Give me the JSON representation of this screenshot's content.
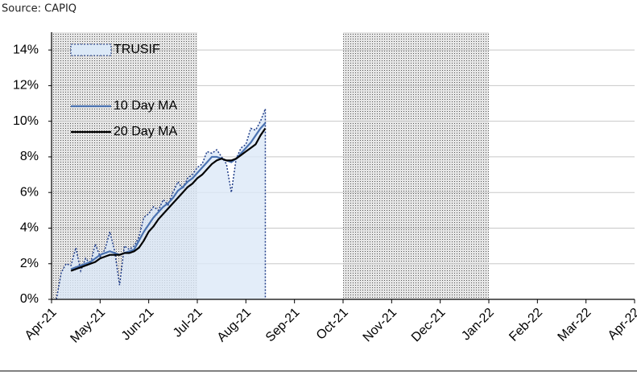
{
  "chart_data": {
    "type": "line",
    "source": "Source: CAPIQ",
    "x": [
      0.1,
      0.2,
      0.3,
      0.4,
      0.5,
      0.6,
      0.7,
      0.8,
      0.9,
      1.0,
      1.1,
      1.2,
      1.3,
      1.4,
      1.5,
      1.6,
      1.7,
      1.8,
      1.9,
      2.0,
      2.1,
      2.2,
      2.3,
      2.4,
      2.5,
      2.6,
      2.7,
      2.8,
      2.9,
      3.0,
      3.1,
      3.2,
      3.3,
      3.4,
      3.5,
      3.6,
      3.7,
      3.8,
      3.9,
      4.0,
      4.1,
      4.2,
      4.3,
      4.4
    ],
    "series": [
      {
        "name": "TRUSIF",
        "kind": "area",
        "color": "#dce9f7",
        "line_color": "#1f3c88",
        "values": [
          0,
          1.5,
          2.0,
          1.9,
          2.9,
          1.6,
          2.3,
          2.0,
          3.1,
          2.4,
          2.8,
          3.8,
          2.7,
          0.8,
          3.0,
          2.8,
          3.0,
          3.5,
          4.6,
          4.8,
          5.2,
          5.0,
          5.6,
          5.3,
          6.0,
          6.6,
          6.2,
          6.8,
          7.0,
          7.4,
          7.6,
          8.3,
          8.2,
          8.4,
          8.0,
          7.6,
          6.0,
          7.9,
          8.5,
          8.7,
          9.6,
          9.5,
          10.0,
          10.7
        ]
      },
      {
        "name": "10 Day MA",
        "kind": "line",
        "color": "#4a72b0",
        "values": [
          null,
          null,
          null,
          1.7,
          1.8,
          1.9,
          2.0,
          2.1,
          2.3,
          2.5,
          2.6,
          2.7,
          2.6,
          2.5,
          2.6,
          2.7,
          2.8,
          3.3,
          3.8,
          4.2,
          4.6,
          4.9,
          5.2,
          5.4,
          5.7,
          6.1,
          6.3,
          6.6,
          6.8,
          7.1,
          7.4,
          7.7,
          8.0,
          8.0,
          7.9,
          7.8,
          7.7,
          7.9,
          8.2,
          8.5,
          8.8,
          9.2,
          9.6,
          9.9
        ]
      },
      {
        "name": "20 Day MA",
        "kind": "line",
        "color": "#000000",
        "values": [
          null,
          null,
          null,
          1.6,
          1.7,
          1.8,
          1.9,
          2.0,
          2.1,
          2.3,
          2.4,
          2.5,
          2.5,
          2.5,
          2.6,
          2.6,
          2.7,
          2.9,
          3.3,
          3.8,
          4.1,
          4.5,
          4.8,
          5.1,
          5.4,
          5.7,
          6.0,
          6.3,
          6.5,
          6.8,
          7.0,
          7.3,
          7.6,
          7.8,
          7.9,
          7.8,
          7.8,
          7.9,
          8.1,
          8.3,
          8.5,
          8.7,
          9.2,
          9.6
        ]
      }
    ],
    "shaded_spans": [
      [
        0,
        3
      ],
      [
        6,
        9
      ]
    ],
    "xlim": [
      0,
      12
    ],
    "xticks": [
      {
        "value": 0,
        "label": "Apr-21"
      },
      {
        "value": 1,
        "label": "May-21"
      },
      {
        "value": 2,
        "label": "Jun-21"
      },
      {
        "value": 3,
        "label": "Jul-21"
      },
      {
        "value": 4,
        "label": "Aug-21"
      },
      {
        "value": 5,
        "label": "Sep-21"
      },
      {
        "value": 6,
        "label": "Oct-21"
      },
      {
        "value": 7,
        "label": "Nov-21"
      },
      {
        "value": 8,
        "label": "Dec-21"
      },
      {
        "value": 9,
        "label": "Jan-22"
      },
      {
        "value": 10,
        "label": "Feb-22"
      },
      {
        "value": 11,
        "label": "Mar-22"
      },
      {
        "value": 12,
        "label": "Apr-22"
      }
    ],
    "ylim": [
      0,
      15
    ],
    "yticks": [
      {
        "value": 0,
        "label": "0%"
      },
      {
        "value": 2,
        "label": "2%"
      },
      {
        "value": 4,
        "label": "4%"
      },
      {
        "value": 6,
        "label": "6%"
      },
      {
        "value": 8,
        "label": "8%"
      },
      {
        "value": 10,
        "label": "10%"
      },
      {
        "value": 12,
        "label": "12%"
      },
      {
        "value": 14,
        "label": "14%"
      }
    ],
    "grid": true
  }
}
